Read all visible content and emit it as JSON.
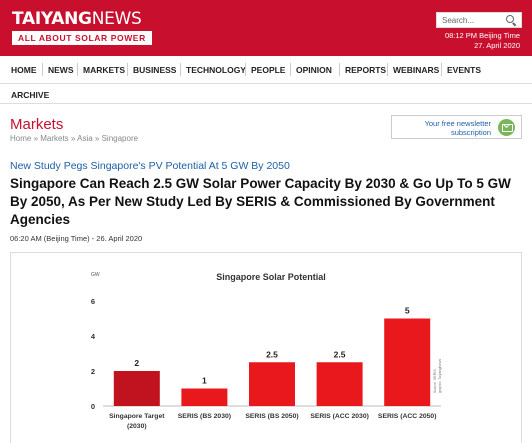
{
  "header": {
    "logo_bold": "TAIYANG",
    "logo_light": "NEWS",
    "tagline": "ALL ABOUT SOLAR POWER",
    "search_placeholder": "Search...",
    "time": "08:12 PM Beijing Time",
    "date": "27. April 2020"
  },
  "nav": {
    "items": [
      "HOME",
      "NEWS",
      "MARKETS",
      "BUSINESS",
      "TECHNOLOGY",
      "PEOPLE",
      "OPINION",
      "REPORTS",
      "WEBINARS",
      "EVENTS"
    ],
    "archive": "ARCHIVE"
  },
  "page": {
    "title": "Markets",
    "breadcrumb": "Home » Markets » Asia » Singapore",
    "newsletter_line1": "Your free newsletter",
    "newsletter_line2": "subscription"
  },
  "article": {
    "subtitle": "New Study Pegs Singapore's PV Potential At 5 GW By 2050",
    "headline": "Singapore Can Reach 2.5 GW Solar Power Capacity By 2030 & Go Up To 5 GW By 2050, As Per New Study Led By SERIS & Commissioned By Government Agencies",
    "time": "06:20 AM (Beijing Time)",
    "date": " - 26. April 2020"
  },
  "chart_data": {
    "type": "bar",
    "title": "Singapore Solar Potential",
    "ylabel": "GW",
    "ylim": [
      0,
      6
    ],
    "yticks": [
      0,
      2,
      4,
      6
    ],
    "categories": [
      "Singapore Target (2030)",
      "SERIS (BS 2030)",
      "SERIS (BS 2050)",
      "SERIS (ACC 2030)",
      "SERIS (ACC 2050)"
    ],
    "category_lines": [
      [
        "Singapore Target",
        "(2030)"
      ],
      [
        "SERIS (BS 2030)"
      ],
      [
        "SERIS (BS 2050)"
      ],
      [
        "SERIS (ACC 2030)"
      ],
      [
        "SERIS (ACC 2050)"
      ]
    ],
    "values": [
      2,
      1,
      2.5,
      2.5,
      5
    ],
    "value_labels": [
      "2",
      "1",
      "2.5",
      "2.5",
      "5"
    ],
    "colors": [
      "#c1121f",
      "#e8181d",
      "#e8181d",
      "#e8181d",
      "#e8181d"
    ],
    "source": "Source: SERIS;",
    "credit": "graphic: TaiyangNews"
  }
}
